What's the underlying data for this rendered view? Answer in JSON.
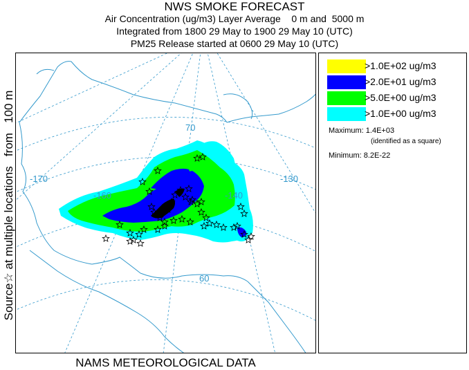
{
  "header": {
    "title": "NWS SMOKE FORECAST",
    "line1": "Air Concentration (ug/m3) Layer Average    0 m and  5000 m",
    "line2": "Integrated from 1800 29 May to 1900 29 May 10 (UTC)",
    "line3": "PM25 Release started at 0600 29 May 10 (UTC)"
  },
  "side_label": "Source☆ at multiple locations   from   100 m",
  "footer": "NAMS METEOROLOGICAL DATA",
  "map": {
    "graticule_labels": {
      "lat_70": "70",
      "lat_60": "60",
      "lon_170": "-170",
      "lon_160": "-160",
      "lon_140": "-140",
      "lon_130": "-130"
    },
    "colors": {
      "level_high": "#ffff00",
      "level_20": "#0000ff",
      "level_5": "#00ff00",
      "level_1": "#00ffff",
      "graticule": "#3399cc",
      "coastline": "#3399cc",
      "source_marker": "#000000"
    }
  },
  "legend": {
    "items": [
      {
        "label": ">1.0E+02 ug/m3",
        "color": "#ffff00"
      },
      {
        "label": ">2.0E+01 ug/m3",
        "color": "#0000ff"
      },
      {
        "label": ">5.0E+00 ug/m3",
        "color": "#00ff00"
      },
      {
        "label": ">1.0E+00 ug/m3",
        "color": "#00ffff"
      }
    ],
    "maximum_label": "Maximum: 1.4E+03",
    "maximum_note": "(identified as a square)",
    "minimum_label": "Minimum: 8.2E-22"
  }
}
